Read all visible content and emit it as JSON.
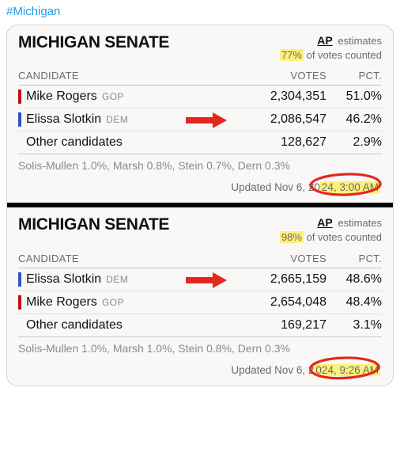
{
  "hashtag": "#Michigan",
  "colors": {
    "link": "#1d9bf0",
    "gop": "#c01118",
    "dem": "#2a56c6",
    "highlight": "#fdf07a",
    "arrow": "#e3281d",
    "circle": "#e3281d"
  },
  "headers": {
    "candidate": "CANDIDATE",
    "votes": "VOTES",
    "pct": "PCT."
  },
  "ap": {
    "logo": "AP",
    "estimates": "estimates",
    "counted_suffix": "of votes counted"
  },
  "panels": [
    {
      "title": "MICHIGAN SENATE",
      "pct_counted": "77%",
      "rows": [
        {
          "name": "Mike Rogers",
          "party": "GOP",
          "party_color": "#c01118",
          "votes": "2,304,351",
          "pct": "51.0%",
          "arrow": false
        },
        {
          "name": "Elissa Slotkin",
          "party": "DEM",
          "party_color": "#2a56c6",
          "votes": "2,086,547",
          "pct": "46.2%",
          "arrow": true
        },
        {
          "name": "Other candidates",
          "party": "",
          "party_color": "",
          "votes": "128,627",
          "pct": "2.9%",
          "arrow": false
        }
      ],
      "others": "Solis-Mullen 1.0%, Marsh 0.8%, Stein 0.7%, Dern 0.3%",
      "updated_prefix": "Updated  Nov 6, 20",
      "updated_mid": "24,",
      "updated_time": " 3:00 AM"
    },
    {
      "title": "MICHIGAN SENATE",
      "pct_counted": "98%",
      "rows": [
        {
          "name": "Elissa Slotkin",
          "party": "DEM",
          "party_color": "#2a56c6",
          "votes": "2,665,159",
          "pct": "48.6%",
          "arrow": true
        },
        {
          "name": "Mike Rogers",
          "party": "GOP",
          "party_color": "#c01118",
          "votes": "2,654,048",
          "pct": "48.4%",
          "arrow": false
        },
        {
          "name": "Other candidates",
          "party": "",
          "party_color": "",
          "votes": "169,217",
          "pct": "3.1%",
          "arrow": false
        }
      ],
      "others": "Solis-Mullen 1.0%, Marsh 1.0%, Stein 0.8%, Dern 0.3%",
      "updated_prefix": "Updated  Nov 6, 2",
      "updated_mid": "024,",
      "updated_time": " 9:26 AM"
    }
  ]
}
